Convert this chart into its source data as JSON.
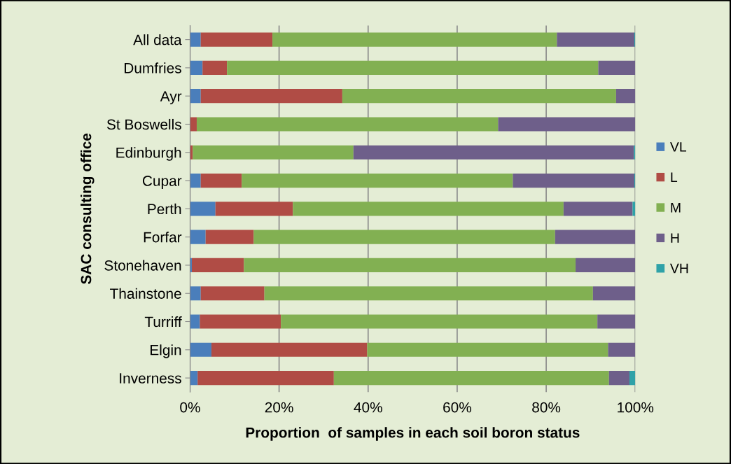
{
  "chart_data": {
    "type": "bar",
    "orientation": "horizontal",
    "stacked": true,
    "xlabel": "Proportion  of samples in each soil boron status",
    "ylabel": "SAC consulting office",
    "categories": [
      "All data",
      "Dumfries",
      "Ayr",
      "St Boswells",
      "Edinburgh",
      "Cupar",
      "Perth",
      "Forfar",
      "Stonehaven",
      "Thainstone",
      "Turriff",
      "Elgin",
      "Inverness"
    ],
    "series": [
      {
        "name": "VL",
        "color": "#4a7ebb",
        "values": [
          2.4,
          2.8,
          2.4,
          0,
          0,
          2.4,
          5.7,
          3.5,
          0.4,
          2.4,
          2.2,
          4.8,
          1.7
        ]
      },
      {
        "name": "L",
        "color": "#b04c45",
        "values": [
          16.1,
          5.5,
          31.8,
          1.5,
          0.6,
          9.2,
          17.4,
          10.8,
          11.7,
          14.3,
          18.2,
          35.0,
          30.6
        ]
      },
      {
        "name": "M",
        "color": "#82b052",
        "values": [
          63.9,
          83.4,
          61.5,
          67.7,
          36.1,
          60.9,
          60.8,
          67.7,
          74.5,
          73.8,
          71.1,
          54.1,
          61.8
        ]
      },
      {
        "name": "H",
        "color": "#6e5f8a",
        "values": [
          17.4,
          8.3,
          4.3,
          30.8,
          63.0,
          27.3,
          15.5,
          18.0,
          13.4,
          9.5,
          8.5,
          6.1,
          4.6
        ]
      },
      {
        "name": "VH",
        "color": "#2fa2a8",
        "values": [
          0.2,
          0,
          0,
          0,
          0.3,
          0.2,
          0.6,
          0,
          0,
          0,
          0,
          null,
          1.3
        ]
      }
    ],
    "xlim": [
      0,
      100
    ],
    "xticks": [
      {
        "value": 0,
        "label": "0%"
      },
      {
        "value": 20,
        "label": "20%"
      },
      {
        "value": 40,
        "label": "40%"
      },
      {
        "value": 60,
        "label": "60%"
      },
      {
        "value": 80,
        "label": "80%"
      },
      {
        "value": 100,
        "label": "100%"
      }
    ],
    "grid": "x",
    "legend": "right"
  }
}
